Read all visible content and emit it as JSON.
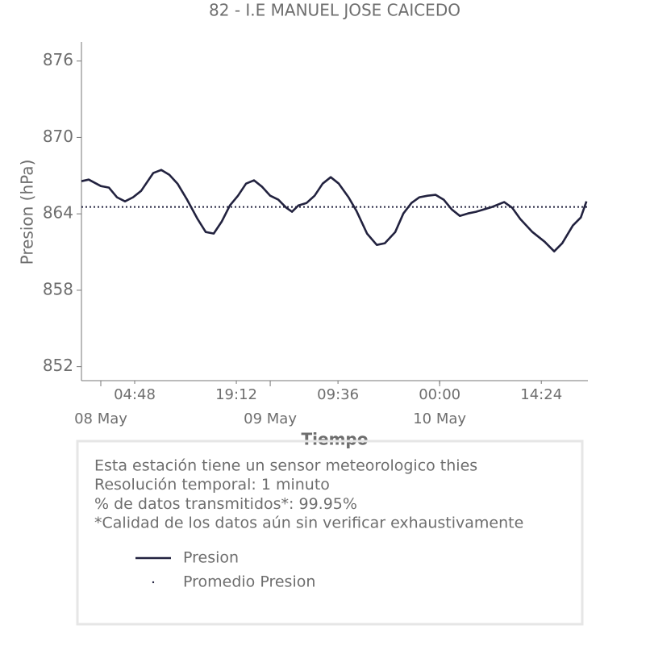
{
  "chart_data": {
    "type": "line",
    "title": "82 - I.E MANUEL JOSE CAICEDO",
    "ylabel": "Presion (hPa)",
    "xlabel": "Tiempo",
    "xlim": [
      -2.74,
      69.0
    ],
    "ylim": [
      850.9,
      877.5
    ],
    "yticks": [
      852,
      858,
      864,
      870,
      876
    ],
    "xticks": [
      {
        "value": 4.8,
        "label": "04:48"
      },
      {
        "value": 19.2,
        "label": "19:12"
      },
      {
        "value": 33.6,
        "label": "09:36"
      },
      {
        "value": 48,
        "label": "00:00"
      },
      {
        "value": 62.4,
        "label": "14:24"
      }
    ],
    "xdate_ticks": [
      {
        "value": 0,
        "label": "08 May"
      },
      {
        "value": 24,
        "label": "09 May"
      },
      {
        "value": 48,
        "label": "10 May"
      }
    ],
    "series": [
      {
        "name": "Presion",
        "color": "#22223f",
        "linestyle": "solid",
        "x": [
          -2.74,
          -1.71,
          0,
          1.14,
          2.29,
          3.43,
          4.57,
          5.71,
          7.43,
          8.57,
          9.71,
          10.86,
          12.23,
          13.71,
          14.86,
          16.0,
          17.14,
          18.29,
          19.43,
          20.57,
          21.71,
          22.86,
          24.0,
          25.14,
          26.29,
          27.09,
          28.0,
          29.14,
          30.29,
          31.43,
          32.57,
          33.71,
          35.09,
          36.23,
          37.71,
          39.09,
          40.23,
          41.71,
          42.86,
          44.0,
          45.14,
          46.29,
          47.43,
          48.57,
          49.71,
          50.86,
          52.0,
          53.14,
          54.29,
          55.43,
          57.14,
          58.29,
          59.43,
          61.14,
          62.86,
          64.23,
          65.37,
          66.86,
          68.0,
          68.8
        ],
        "values": [
          866.56,
          866.69,
          866.18,
          866.06,
          865.3,
          864.98,
          865.3,
          865.8,
          867.2,
          867.45,
          867.07,
          866.37,
          865.11,
          863.59,
          862.57,
          862.45,
          863.4,
          864.66,
          865.42,
          866.37,
          866.63,
          866.12,
          865.42,
          865.11,
          864.47,
          864.16,
          864.66,
          864.85,
          865.42,
          866.37,
          866.88,
          866.37,
          865.3,
          864.22,
          862.45,
          861.56,
          861.69,
          862.57,
          864.03,
          864.85,
          865.3,
          865.42,
          865.49,
          865.11,
          864.35,
          863.84,
          864.03,
          864.16,
          864.35,
          864.54,
          864.92,
          864.47,
          863.59,
          862.57,
          861.81,
          861.05,
          861.69,
          863.08,
          863.71,
          864.98
        ]
      },
      {
        "name": "Promedio Presion",
        "color": "#22223f",
        "linestyle": "dotted",
        "x": [
          -2.74,
          69.0
        ],
        "values": [
          864.54,
          864.54
        ]
      }
    ],
    "notes": [
      "Esta estación tiene un sensor meteorologico thies",
      "Resolución temporal: 1 minuto",
      "% de datos transmitidos*: 99.95%",
      "*Calidad de los datos aún sin verificar exhaustivamente"
    ]
  }
}
